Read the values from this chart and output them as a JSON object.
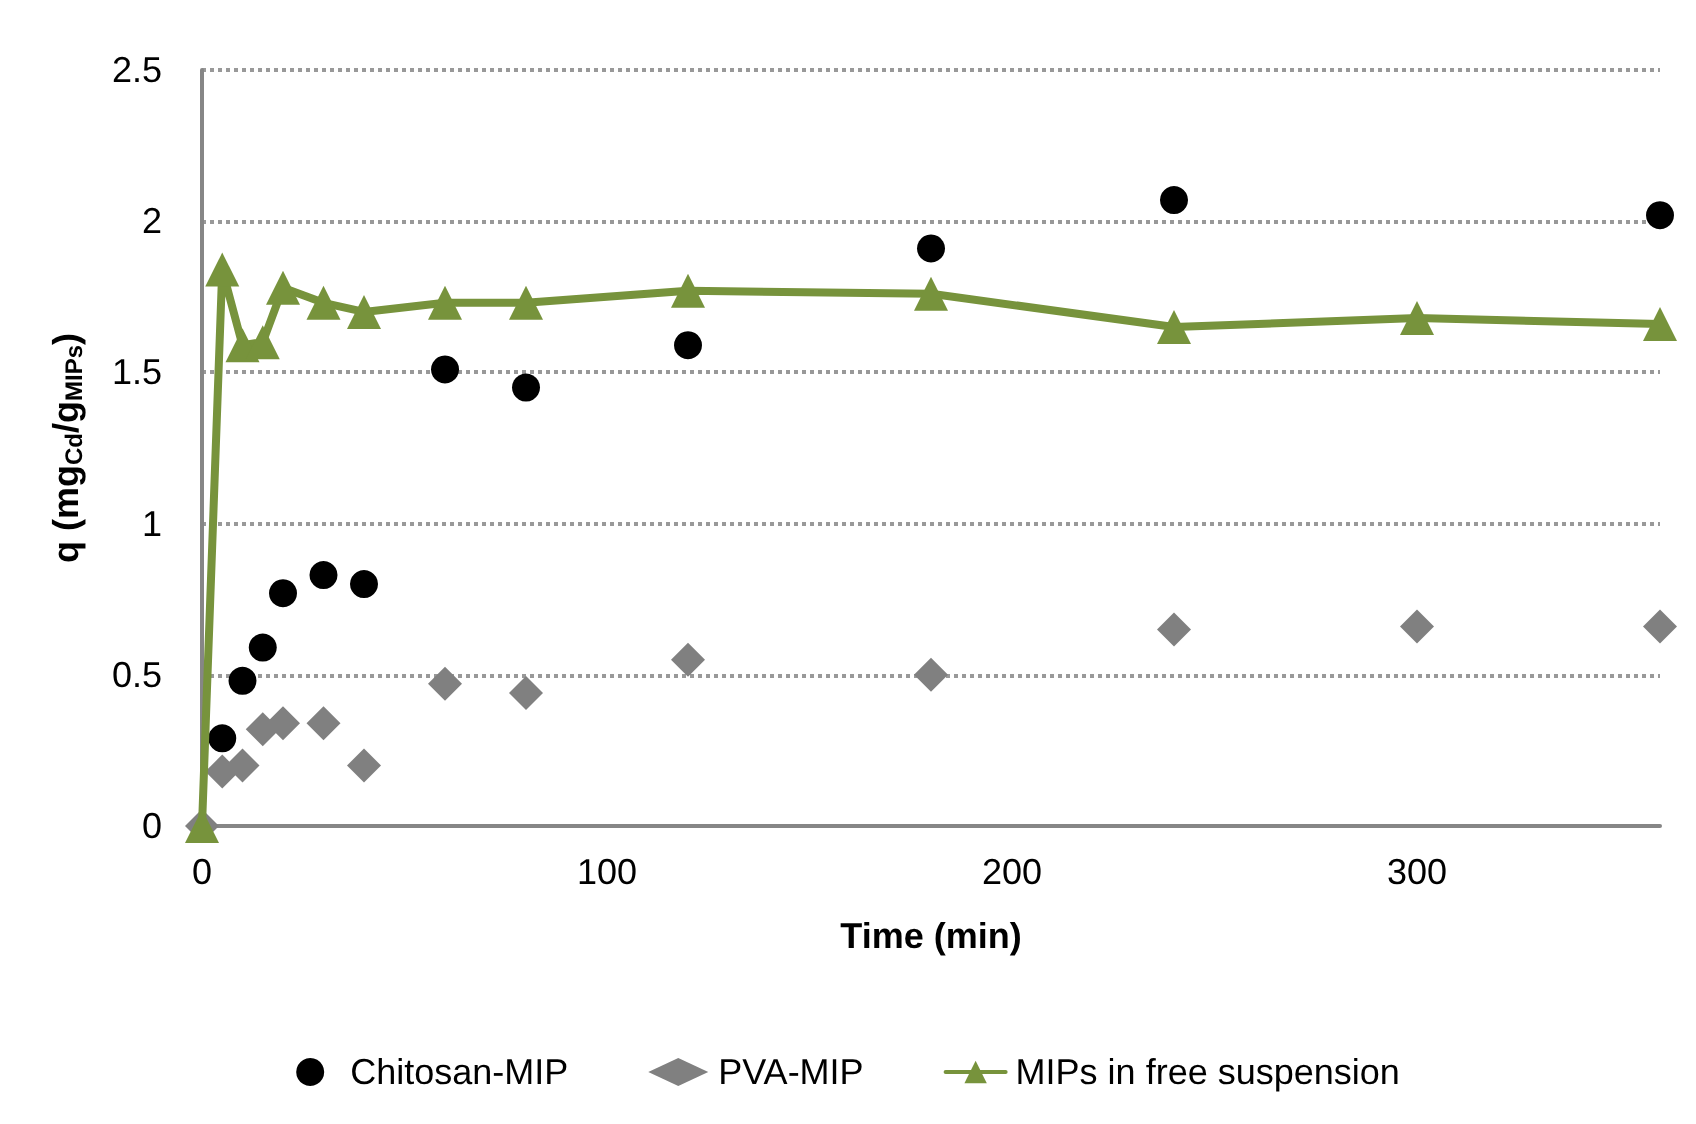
{
  "chart_data": {
    "type": "scatter",
    "xlabel": "Time (min)",
    "ylabel": "q (mg$_{Cd}$/g$_{MIPs}$)",
    "xlim": [
      0,
      360
    ],
    "xticks": [
      0,
      100,
      200,
      300
    ],
    "ylim": [
      0,
      2.5
    ],
    "yticks": [
      0,
      0.5,
      1,
      1.5,
      2,
      2.5
    ],
    "grid": "y",
    "legend": "bottom",
    "series": [
      {
        "name": "Chitosan-MIP",
        "marker": "circle",
        "color": "#000000",
        "x": [
          5,
          10,
          15,
          20,
          30,
          40,
          60,
          80,
          120,
          180,
          240,
          360
        ],
        "values": [
          0.29,
          0.48,
          0.59,
          0.77,
          0.83,
          0.8,
          1.51,
          1.45,
          1.59,
          1.91,
          2.07,
          2.02
        ]
      },
      {
        "name": "PVA-MIP",
        "marker": "diamond",
        "color": "#808080",
        "x": [
          0,
          5,
          10,
          15,
          20,
          30,
          40,
          60,
          80,
          120,
          180,
          240,
          300,
          360
        ],
        "values": [
          0,
          0.18,
          0.2,
          0.32,
          0.34,
          0.34,
          0.2,
          0.47,
          0.44,
          0.55,
          0.5,
          0.65,
          0.66,
          0.66
        ]
      },
      {
        "name": "MIPs in free suspension",
        "type": "line",
        "marker": "triangle",
        "line_style": "solid",
        "color": "#77933c",
        "x": [
          0,
          5,
          10,
          15,
          20,
          30,
          40,
          60,
          80,
          120,
          180,
          240,
          300,
          360
        ],
        "values": [
          0,
          1.84,
          1.59,
          1.6,
          1.78,
          1.73,
          1.7,
          1.73,
          1.73,
          1.77,
          1.76,
          1.65,
          1.68,
          1.66
        ]
      }
    ]
  }
}
